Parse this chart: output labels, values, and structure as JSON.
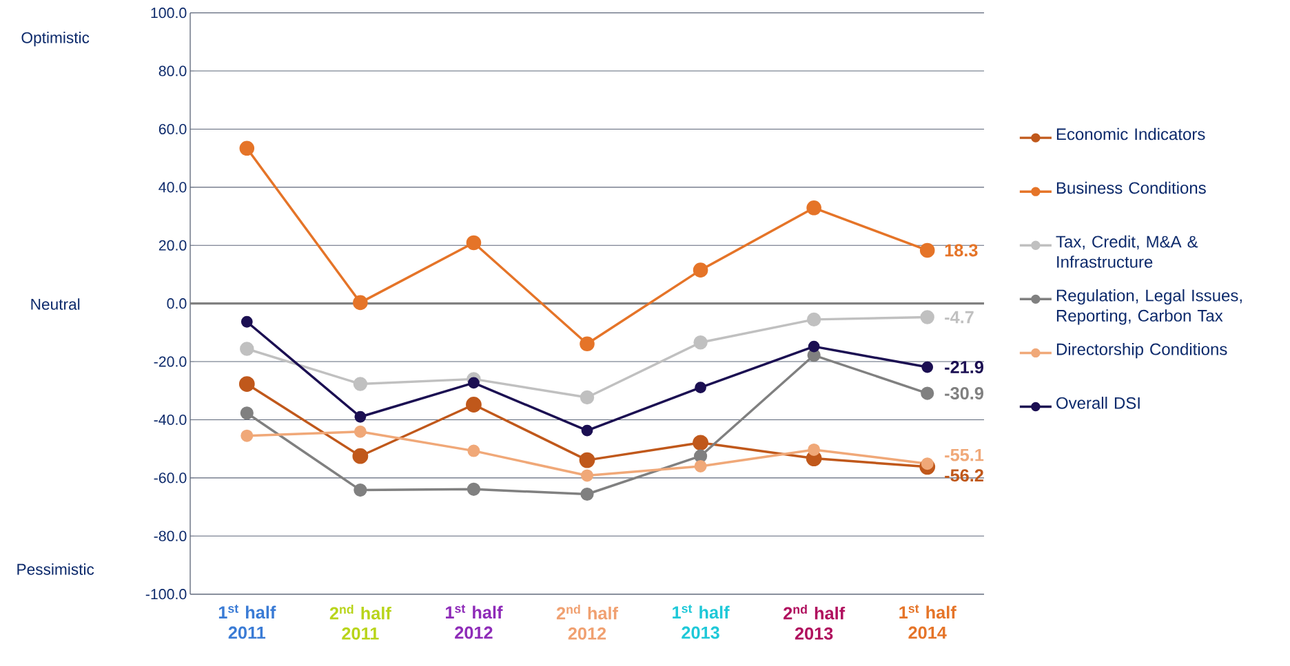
{
  "chart_data": {
    "type": "line",
    "categories": [
      "1$^{st}$ half 2011",
      "2$^{nd}$ half 2011",
      "1$^{st}$ half 2012",
      "2$^{nd}$ half 2012",
      "1$^{st}$ half 2013",
      "2$^{nd}$ half 2013",
      "1$^{st}$ half 2014"
    ],
    "series": [
      {
        "name": "Economic Indicators",
        "color": "#c0581b",
        "values": [
          -27.7,
          -52.5,
          -34.8,
          -53.9,
          -47.9,
          -53.3,
          -56.2
        ],
        "value_labels": [
          null,
          null,
          null,
          null,
          null,
          null,
          "-56.2"
        ]
      },
      {
        "name": "Business Conditions",
        "color": "#e57428",
        "values": [
          53.4,
          0.3,
          20.9,
          -13.9,
          11.5,
          32.9,
          18.3
        ],
        "value_labels": [
          null,
          null,
          null,
          null,
          null,
          null,
          "18.3"
        ]
      },
      {
        "name": "Tax, Credit, M&A & Infrastructure",
        "color": "#c0c0c0",
        "values": [
          -15.6,
          -27.7,
          -26.0,
          -32.3,
          -13.4,
          -5.5,
          -4.7
        ],
        "value_labels": [
          null,
          null,
          null,
          null,
          null,
          null,
          "-4.7"
        ]
      },
      {
        "name": "Regulation, Legal Issues, Reporting, Carbon Tax",
        "color": "#808080",
        "values": [
          -37.7,
          -64.2,
          -63.9,
          -65.6,
          -52.5,
          -17.8,
          -30.9
        ],
        "value_labels": [
          null,
          null,
          null,
          null,
          null,
          null,
          "-30.9"
        ]
      },
      {
        "name": "Directorship Conditions",
        "color": "#f0a878",
        "values": [
          -45.5,
          -44.1,
          -50.7,
          -59.2,
          -56.0,
          -50.3,
          -55.1
        ],
        "value_labels": [
          null,
          null,
          null,
          null,
          null,
          null,
          "-55.1"
        ]
      },
      {
        "name": "Overall DSI",
        "color": "#1b0f52",
        "values": [
          -6.3,
          -39.0,
          -27.3,
          -43.7,
          -28.9,
          -14.8,
          -21.9
        ],
        "value_labels": [
          null,
          null,
          null,
          null,
          null,
          null,
          "-21.9"
        ]
      }
    ],
    "ylim": [
      -100,
      100
    ],
    "yticks": [
      {
        "value": -100,
        "label": "-100.0"
      },
      {
        "value": -80,
        "label": "-80.0"
      },
      {
        "value": -60,
        "label": "-60.0"
      },
      {
        "value": -40,
        "label": "-40.0"
      },
      {
        "value": -20,
        "label": "-20.0"
      },
      {
        "value": 0,
        "label": "0.0"
      },
      {
        "value": 20,
        "label": "20.0"
      },
      {
        "value": 40,
        "label": "40.0"
      },
      {
        "value": 60,
        "label": "60.0"
      },
      {
        "value": 80,
        "label": "80.0"
      },
      {
        "value": 100,
        "label": "100.0"
      }
    ],
    "ref_lines": [
      {
        "axis": "y",
        "value": 0,
        "color": "#808080"
      }
    ],
    "annotations": [
      "Optimistic",
      "Neutral",
      "Pessimistic"
    ],
    "grid": "y",
    "legend": "right",
    "marker": "circle",
    "line_style": "solid"
  }
}
